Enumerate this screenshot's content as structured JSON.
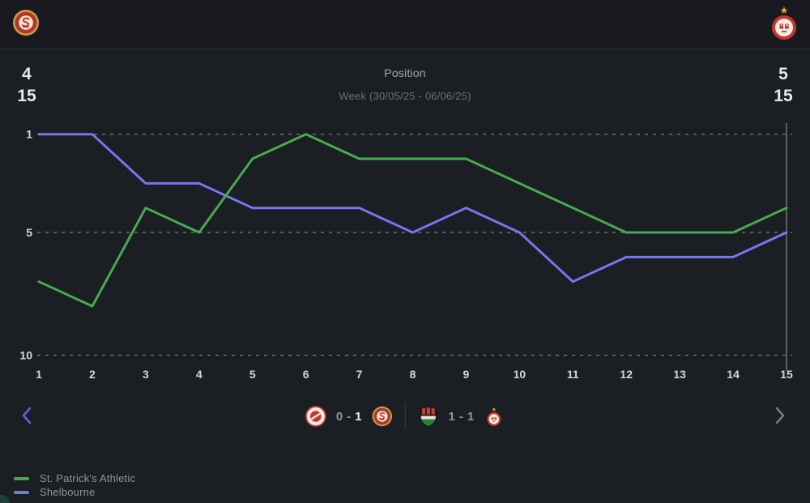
{
  "top_bar": {
    "left_icon": "st-patricks-athletic-crest",
    "right_icon": "shelbourne-crest"
  },
  "header": {
    "left_stat": {
      "line1": "4",
      "line2": "15"
    },
    "right_stat": {
      "line1": "5",
      "line2": "15"
    },
    "title": "Position",
    "subtitle": "Week (30/05/25 - 06/06/25)"
  },
  "chart_data": {
    "type": "line",
    "title": "Position",
    "xlabel": "Week",
    "ylabel": "Position",
    "x": [
      1,
      2,
      3,
      4,
      5,
      6,
      7,
      8,
      9,
      10,
      11,
      12,
      13,
      14,
      15
    ],
    "y_ticks": [
      1,
      5,
      10
    ],
    "ylim": [
      1,
      10
    ],
    "y_axis_inverted": true,
    "grid": "horizontal-dashed",
    "legend_position": "bottom-left",
    "selected_week": 15,
    "series": [
      {
        "name": "St. Patrick's Athletic",
        "color": "#45ab4f",
        "values": [
          7,
          8,
          4,
          5,
          2,
          1,
          2,
          2,
          2,
          3,
          4,
          5,
          5,
          5,
          4
        ]
      },
      {
        "name": "Shelbourne",
        "color": "#7577ee",
        "values": [
          1,
          1,
          3,
          3,
          4,
          4,
          4,
          5,
          4,
          5,
          7,
          6,
          6,
          6,
          5
        ]
      }
    ],
    "axis_color": "#d6d7d9",
    "gridline_color": "#8f9296",
    "marker_color": "#85888c"
  },
  "match_nav": {
    "matches": [
      {
        "home_icon": "sligo-rovers-crest",
        "home_score": "0",
        "separator": "-",
        "away_score": "1",
        "away_icon": "st-patricks-athletic-crest",
        "emphasis": "away"
      },
      {
        "home_icon": "cork-city-crest",
        "home_score": "1",
        "separator": "-",
        "away_score": "1",
        "away_icon": "shelbourne-crest",
        "emphasis": "none"
      }
    ]
  },
  "legend": {
    "items": [
      {
        "label": "St. Patrick's Athletic",
        "color": "#45ab4f"
      },
      {
        "label": "Shelbourne",
        "color": "#7577ee"
      }
    ]
  }
}
